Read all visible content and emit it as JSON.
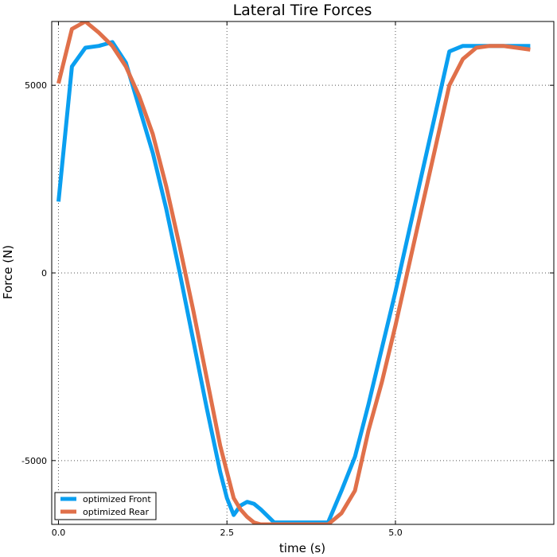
{
  "chart_data": {
    "type": "line",
    "title": "Lateral Tire Forces",
    "xlabel": "time (s)",
    "ylabel": "Force (N)",
    "xlim": [
      -0.1,
      7.35
    ],
    "ylim": [
      -6700,
      6700
    ],
    "xticks": [
      0.0,
      2.5,
      5.0
    ],
    "xtick_labels": [
      "0.0",
      "2.5",
      "5.0"
    ],
    "yticks": [
      5000,
      0,
      -5000
    ],
    "ytick_labels": [
      "5000",
      "0",
      "-5000"
    ],
    "grid": true,
    "legend_position": "bottom-left",
    "series": [
      {
        "name": "optimized Front",
        "color": "#0a9ff0",
        "x": [
          0.0,
          0.2,
          0.4,
          0.6,
          0.8,
          1.0,
          1.2,
          1.4,
          1.6,
          1.8,
          2.0,
          2.2,
          2.4,
          2.5,
          2.6,
          2.7,
          2.8,
          2.9,
          3.0,
          3.2,
          3.4,
          3.6,
          3.8,
          4.0,
          4.2,
          4.4,
          4.6,
          4.8,
          5.0,
          5.2,
          5.4,
          5.6,
          5.8,
          6.0,
          6.2,
          6.4,
          6.6,
          6.8,
          7.0
        ],
        "y": [
          1900,
          5500,
          6000,
          6050,
          6150,
          5600,
          4400,
          3200,
          1700,
          0,
          -1800,
          -3600,
          -5300,
          -6000,
          -6450,
          -6200,
          -6100,
          -6150,
          -6300,
          -6650,
          -6650,
          -6650,
          -6650,
          -6650,
          -5800,
          -4900,
          -3500,
          -2000,
          -500,
          1100,
          2700,
          4300,
          5900,
          6050,
          6050,
          6050,
          6050,
          6050,
          6050
        ]
      },
      {
        "name": "optimized Rear",
        "color": "#e0704a",
        "x": [
          0.0,
          0.2,
          0.4,
          0.6,
          0.8,
          1.0,
          1.2,
          1.4,
          1.6,
          1.8,
          2.0,
          2.2,
          2.4,
          2.6,
          2.7,
          2.8,
          2.9,
          3.0,
          3.2,
          3.4,
          3.6,
          3.8,
          4.0,
          4.2,
          4.4,
          4.6,
          4.8,
          5.0,
          5.2,
          5.4,
          5.6,
          5.8,
          6.0,
          6.2,
          6.4,
          6.6,
          6.8,
          7.0
        ],
        "y": [
          5050,
          6500,
          6700,
          6400,
          6050,
          5500,
          4700,
          3700,
          2300,
          700,
          -1000,
          -2800,
          -4600,
          -6000,
          -6300,
          -6500,
          -6650,
          -6700,
          -6700,
          -6700,
          -6700,
          -6700,
          -6700,
          -6400,
          -5800,
          -4200,
          -2900,
          -1400,
          200,
          1800,
          3400,
          5000,
          5700,
          6000,
          6050,
          6050,
          6000,
          5950
        ]
      }
    ]
  }
}
